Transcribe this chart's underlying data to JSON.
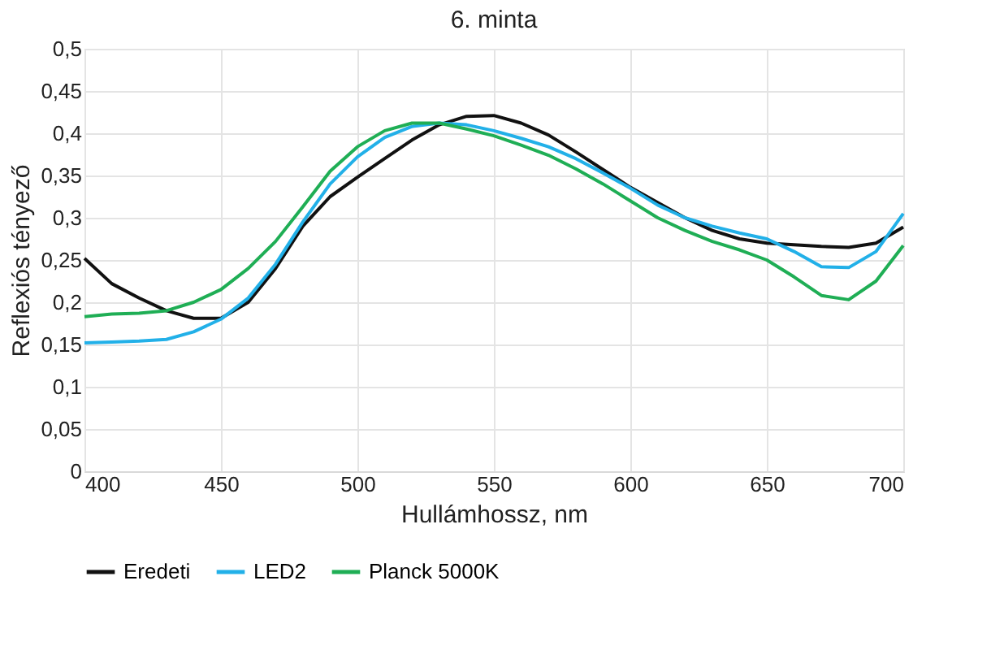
{
  "chart_data": {
    "type": "line",
    "title": "6. minta",
    "xlabel": "Hullámhossz, nm",
    "ylabel": "Reflexiós tényező",
    "x": [
      400,
      410,
      420,
      430,
      440,
      450,
      460,
      470,
      480,
      490,
      500,
      510,
      520,
      530,
      540,
      550,
      560,
      570,
      580,
      590,
      600,
      610,
      620,
      630,
      640,
      650,
      660,
      670,
      680,
      690,
      700
    ],
    "series": [
      {
        "name": "Eredeti",
        "color": "#111111",
        "values": [
          0.252,
          0.222,
          0.205,
          0.19,
          0.181,
          0.181,
          0.2,
          0.24,
          0.29,
          0.325,
          0.348,
          0.37,
          0.392,
          0.41,
          0.42,
          0.421,
          0.412,
          0.398,
          0.378,
          0.357,
          0.336,
          0.318,
          0.3,
          0.285,
          0.275,
          0.27,
          0.268,
          0.266,
          0.265,
          0.27,
          0.289
        ]
      },
      {
        "name": "LED2",
        "color": "#22b0e8",
        "values": [
          0.152,
          0.153,
          0.154,
          0.156,
          0.165,
          0.18,
          0.205,
          0.245,
          0.295,
          0.34,
          0.372,
          0.395,
          0.408,
          0.412,
          0.41,
          0.403,
          0.394,
          0.384,
          0.37,
          0.353,
          0.335,
          0.315,
          0.3,
          0.29,
          0.282,
          0.275,
          0.26,
          0.242,
          0.241,
          0.26,
          0.305
        ]
      },
      {
        "name": "Planck 5000K",
        "color": "#1fae55",
        "values": [
          0.183,
          0.186,
          0.187,
          0.19,
          0.2,
          0.215,
          0.24,
          0.272,
          0.313,
          0.355,
          0.384,
          0.403,
          0.412,
          0.412,
          0.405,
          0.397,
          0.386,
          0.374,
          0.358,
          0.34,
          0.32,
          0.3,
          0.285,
          0.272,
          0.262,
          0.25,
          0.23,
          0.208,
          0.203,
          0.225,
          0.267
        ]
      }
    ],
    "xlim": [
      400,
      700
    ],
    "xticks": [
      400,
      450,
      500,
      550,
      600,
      650,
      700
    ],
    "ylim": [
      0,
      0.5
    ],
    "yticks": [
      0,
      {
        "value": 0.05,
        "label": "0,05"
      },
      {
        "value": 0.1,
        "label": "0,1"
      },
      {
        "value": 0.15,
        "label": "0,15"
      },
      {
        "value": 0.2,
        "label": "0,2"
      },
      {
        "value": 0.25,
        "label": "0,25"
      },
      {
        "value": 0.3,
        "label": "0,3"
      },
      {
        "value": 0.35,
        "label": "0,35"
      },
      {
        "value": 0.4,
        "label": "0,4"
      },
      {
        "value": 0.45,
        "label": "0,45"
      },
      {
        "value": 0.5,
        "label": "0,5"
      }
    ],
    "grid": true,
    "legend": "bottom",
    "marker": "none",
    "line_style": "solid"
  }
}
